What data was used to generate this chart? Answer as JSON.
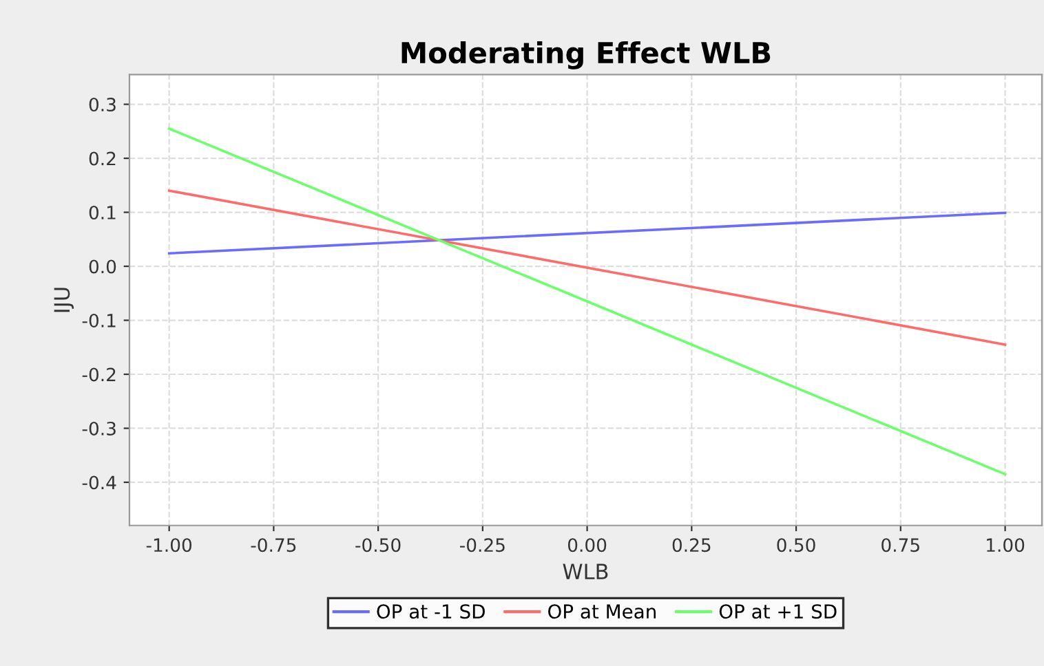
{
  "chart_data": {
    "type": "line",
    "title": "Moderating Effect WLB",
    "xlabel": "WLB",
    "ylabel": "IJU",
    "x": [
      -1.0,
      1.0
    ],
    "series": [
      {
        "name": "OP at -1 SD",
        "color": "#6b6bff",
        "values": [
          0.024,
          0.099
        ]
      },
      {
        "name": "OP at Mean",
        "color": "#ff6b6b",
        "values": [
          0.14,
          -0.145
        ]
      },
      {
        "name": "OP at +1 SD",
        "color": "#6bff6b",
        "values": [
          0.255,
          -0.385
        ]
      }
    ],
    "xlim": [
      -1.095,
      1.088
    ],
    "ylim": [
      -0.48,
      0.355
    ],
    "xticks": [
      {
        "value": -1.0,
        "label": "-1.00"
      },
      {
        "value": -0.75,
        "label": "-0.75"
      },
      {
        "value": -0.5,
        "label": "-0.50"
      },
      {
        "value": -0.25,
        "label": "-0.25"
      },
      {
        "value": 0.0,
        "label": "0.00"
      },
      {
        "value": 0.25,
        "label": "0.25"
      },
      {
        "value": 0.5,
        "label": "0.50"
      },
      {
        "value": 0.75,
        "label": "0.75"
      },
      {
        "value": 1.0,
        "label": "1.00"
      }
    ],
    "yticks": [
      {
        "value": -0.4,
        "label": "-0.4"
      },
      {
        "value": -0.3,
        "label": "-0.3"
      },
      {
        "value": -0.2,
        "label": "-0.2"
      },
      {
        "value": -0.1,
        "label": "-0.1"
      },
      {
        "value": 0.0,
        "label": "0.0"
      },
      {
        "value": 0.1,
        "label": "0.1"
      },
      {
        "value": 0.2,
        "label": "0.2"
      },
      {
        "value": 0.3,
        "label": "0.3"
      }
    ],
    "grid": true,
    "legend": "bottom",
    "marker": "none",
    "line_style": "solid"
  }
}
